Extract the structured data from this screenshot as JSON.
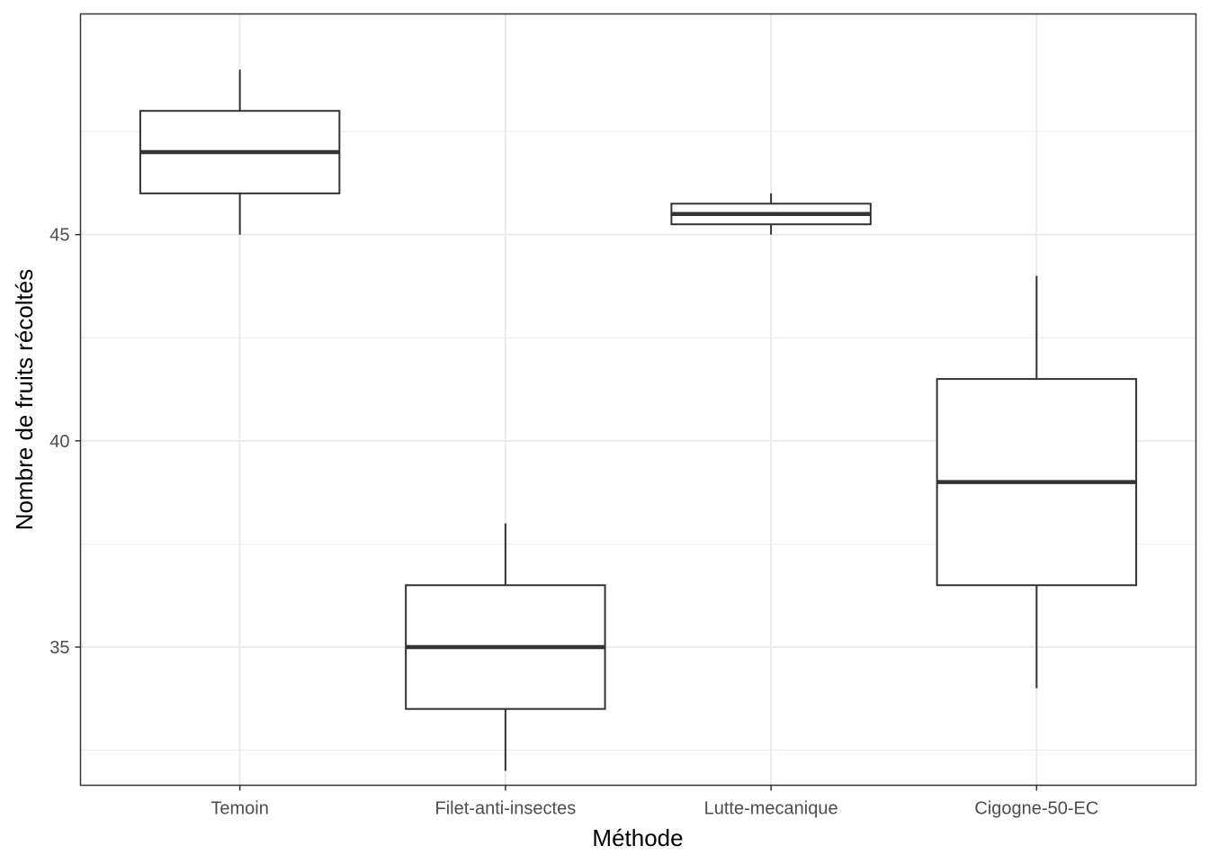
{
  "chart_data": {
    "type": "boxplot",
    "xlabel": "Méthode",
    "ylabel": "Nombre de fruits récoltés",
    "ylim": [
      31.65,
      50.35
    ],
    "y_major_ticks": [
      35,
      40,
      45
    ],
    "y_minor_ticks": [
      32.5,
      37.5,
      42.5,
      47.5
    ],
    "grid": true,
    "categories": [
      "Temoin",
      "Filet-anti-insectes",
      "Lutte-mecanique",
      "Cigogne-50-EC"
    ],
    "boxes": [
      {
        "category": "Temoin",
        "min": 45,
        "q1": 46,
        "median": 47,
        "q3": 48,
        "max": 49
      },
      {
        "category": "Filet-anti-insectes",
        "min": 32,
        "q1": 33.5,
        "median": 35,
        "q3": 36.5,
        "max": 38
      },
      {
        "category": "Lutte-mecanique",
        "min": 45,
        "q1": 45.25,
        "median": 45.5,
        "q3": 45.75,
        "max": 46
      },
      {
        "category": "Cigogne-50-EC",
        "min": 34,
        "q1": 36.5,
        "median": 39,
        "q3": 41.5,
        "max": 44
      }
    ]
  },
  "colors": {
    "panel_border": "#333333",
    "grid": "#ebebeb",
    "box_line": "#333333",
    "box_fill": "#ffffff",
    "tick_text": "#4d4d4d",
    "axis_title": "#000000"
  }
}
